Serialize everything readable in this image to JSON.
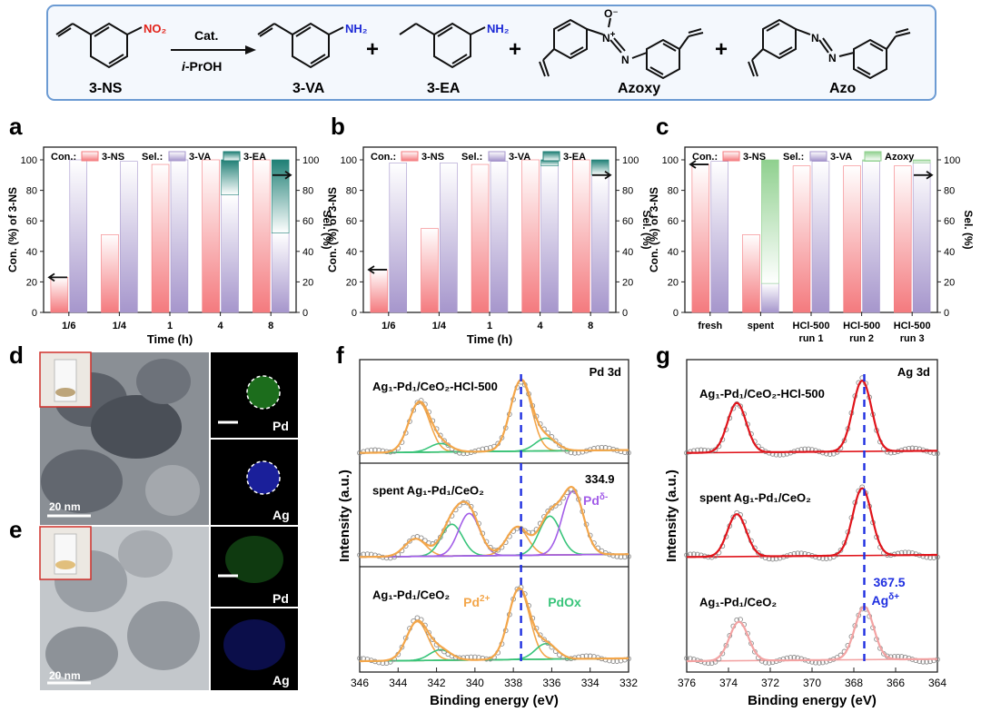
{
  "scheme": {
    "catalyst": "Cat.",
    "solvent_prefix": "i",
    "solvent_suffix": "-PrOH",
    "nitro_label": "NO₂",
    "amine_label": "NH₂",
    "oxide_label": "O⁻",
    "azoxy_plus": "+",
    "nitrogen": "N",
    "plus": "+",
    "compounds": [
      "3-NS",
      "3-VA",
      "3-EA",
      "Azoxy",
      "Azo"
    ]
  },
  "panels": {
    "a": "a",
    "b": "b",
    "c": "c",
    "d": "d",
    "e": "e",
    "f": "f",
    "g": "g"
  },
  "tem": {
    "scale_bar": "20 nm",
    "element_1": "Pd",
    "element_2": "Ag"
  },
  "colors": {
    "con": "#f47a7e",
    "va": "#a696cc",
    "ea": "#1f7f75",
    "azoxy": "#8fd08e",
    "xps_fit_red": "#e0141b",
    "xps_pink": "#f3a3a3",
    "pd_orange": "#f3a64a",
    "pd_green": "#38c47a",
    "pd_purple": "#a35ee8",
    "marker_blue": "#1f2fe0"
  },
  "chart_data": [
    {
      "id": "a",
      "type": "bar",
      "xlabel": "Time (h)",
      "ylabel": "Con. (%) of 3-NS",
      "y2label": "Sel. (%)",
      "ylim": [
        0,
        100
      ],
      "y2lim": [
        0,
        100
      ],
      "ticks": [
        "0",
        "20",
        "40",
        "60",
        "80",
        "100"
      ],
      "categories": [
        "1/6",
        "1/4",
        "1",
        "4",
        "8"
      ],
      "legend": [
        "Con.:",
        "3-NS",
        "Sel.:",
        "3-VA",
        "3-EA"
      ],
      "series": [
        {
          "name": "3-NS",
          "values": [
            23,
            51,
            97,
            100,
            100
          ]
        },
        {
          "name": "3-VA",
          "values": [
            100,
            99,
            100,
            77,
            52
          ]
        },
        {
          "name": "3-EA",
          "values": [
            0,
            0,
            0,
            23,
            48
          ]
        }
      ]
    },
    {
      "id": "b",
      "type": "bar",
      "xlabel": "Time (h)",
      "ylabel": "Con. (%) of 3-NS",
      "y2label": "Sel. (%)",
      "ylim": [
        0,
        100
      ],
      "y2lim": [
        0,
        100
      ],
      "ticks": [
        "0",
        "20",
        "40",
        "60",
        "80",
        "100"
      ],
      "categories": [
        "1/6",
        "1/4",
        "1",
        "4",
        "8"
      ],
      "legend": [
        "Con.:",
        "3-NS",
        "Sel.:",
        "3-VA",
        "3-EA"
      ],
      "series": [
        {
          "name": "3-NS",
          "values": [
            28,
            55,
            97,
            100,
            100
          ]
        },
        {
          "name": "3-VA",
          "values": [
            98,
            98,
            99,
            96,
            90
          ]
        },
        {
          "name": "3-EA",
          "values": [
            0,
            0,
            0,
            4,
            10
          ]
        }
      ]
    },
    {
      "id": "c",
      "type": "bar",
      "xlabel": "",
      "ylabel": "Con. (%) of 3-NS",
      "y2label": "Sel. (%)",
      "ylim": [
        0,
        100
      ],
      "y2lim": [
        0,
        100
      ],
      "ticks": [
        "0",
        "20",
        "40",
        "60",
        "80",
        "100"
      ],
      "categories": [
        "fresh",
        "spent",
        "HCl-500|run 1",
        "HCl-500|run 2",
        "HCl-500|run 3"
      ],
      "legend": [
        "Con.:",
        "3-NS",
        "Sel.:",
        "3-VA",
        "Azoxy"
      ],
      "series": [
        {
          "name": "3-NS",
          "values": [
            97,
            51,
            96,
            96,
            96
          ]
        },
        {
          "name": "3-VA",
          "values": [
            99,
            19,
            99,
            99,
            98
          ]
        },
        {
          "name": "Azoxy",
          "values": [
            0,
            81,
            0,
            1,
            2
          ]
        }
      ]
    },
    {
      "id": "f",
      "type": "line",
      "title": "Pd 3d",
      "xlabel": "Binding energy (eV)",
      "ylabel": "Intensity (a.u.)",
      "xlim": [
        346,
        332
      ],
      "xticks": [
        "346",
        "344",
        "342",
        "340",
        "338",
        "336",
        "334",
        "332"
      ],
      "marker_line": 337.6,
      "spectra": [
        {
          "name": "Ag₁-Pd₁/CeO₂-HCl-500",
          "peaks": [
            {
              "center": 342.9,
              "height": 0.7
            },
            {
              "center": 337.6,
              "height": 1.0
            },
            {
              "center": 341.8,
              "height": 0.12
            },
            {
              "center": 336.3,
              "height": 0.18
            }
          ]
        },
        {
          "name": "spent Ag₁-Pd₁/CeO₂",
          "peaks": [
            {
              "center": 343.1,
              "height": 0.25
            },
            {
              "center": 341.2,
              "height": 0.45
            },
            {
              "center": 340.3,
              "height": 0.6
            },
            {
              "center": 337.8,
              "height": 0.4
            },
            {
              "center": 336.1,
              "height": 0.55
            },
            {
              "center": 334.9,
              "height": 0.9
            }
          ]
        },
        {
          "name": "Ag₁-Pd₁/CeO₂",
          "peaks": [
            {
              "center": 343.0,
              "height": 0.55
            },
            {
              "center": 337.7,
              "height": 1.0
            },
            {
              "center": 341.8,
              "height": 0.15
            },
            {
              "center": 336.3,
              "height": 0.22
            }
          ]
        }
      ],
      "annotations": [
        "334.9",
        "Pd",
        "δ-",
        "Pd",
        "2+",
        "PdOx"
      ]
    },
    {
      "id": "g",
      "type": "line",
      "title": "Ag 3d",
      "xlabel": "Binding energy (eV)",
      "ylabel": "Intensity (a.u.)",
      "xlim": [
        376,
        364
      ],
      "xticks": [
        "376",
        "374",
        "372",
        "370",
        "368",
        "366",
        "364"
      ],
      "marker_line": 367.5,
      "spectra": [
        {
          "name": "Ag₁-Pd₁/CeO₂-HCl-500",
          "peaks": [
            {
              "center": 373.6,
              "height": 0.7
            },
            {
              "center": 367.6,
              "height": 1.0
            }
          ]
        },
        {
          "name": "spent Ag₁-Pd₁/CeO₂",
          "peaks": [
            {
              "center": 373.6,
              "height": 0.6
            },
            {
              "center": 367.6,
              "height": 0.95
            }
          ]
        },
        {
          "name": "Ag₁-Pd₁/CeO₂",
          "peaks": [
            {
              "center": 373.5,
              "height": 0.55
            },
            {
              "center": 367.5,
              "height": 0.75
            }
          ]
        }
      ],
      "annotations": [
        "367.5",
        "Ag",
        "δ+"
      ]
    }
  ]
}
